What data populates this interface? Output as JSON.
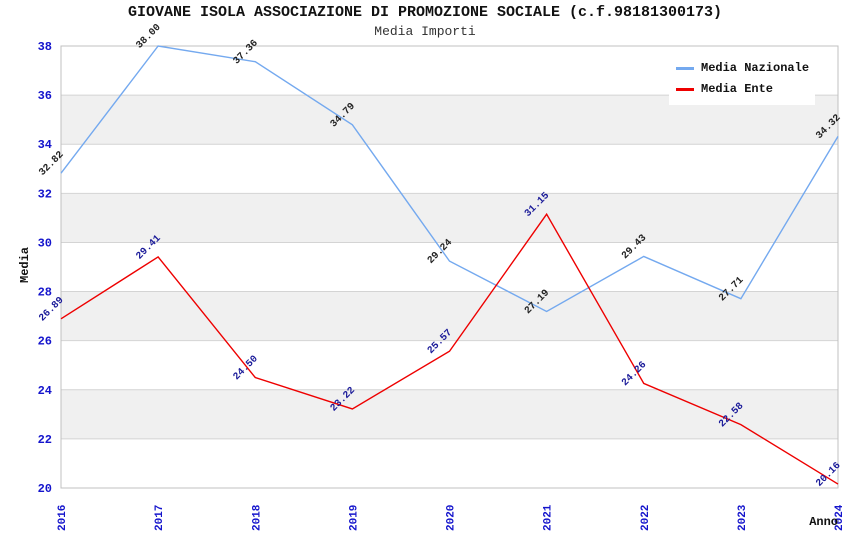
{
  "chart_data": {
    "type": "line",
    "title": "GIOVANE ISOLA ASSOCIAZIONE DI PROMOZIONE SOCIALE (c.f.98181300173)",
    "subtitle": "Media Importi",
    "xlabel": "Anno",
    "ylabel": "Media",
    "x": [
      2016,
      2017,
      2018,
      2019,
      2020,
      2021,
      2022,
      2023,
      2024
    ],
    "series": [
      {
        "name": "Media Nazionale",
        "color": "#74a9ef",
        "label_color": "#222222",
        "values": [
          32.82,
          38.0,
          37.36,
          34.79,
          29.24,
          27.19,
          29.43,
          27.71,
          34.32
        ]
      },
      {
        "name": "Media Ente",
        "color": "#ee0000",
        "label_color": "#1a1a99",
        "values": [
          26.89,
          29.41,
          24.5,
          23.22,
          25.57,
          31.15,
          24.26,
          22.58,
          20.16
        ]
      }
    ],
    "ylim": [
      20,
      38
    ],
    "ytick_step": 2,
    "grid": "horizontal",
    "legend_position": "top-right",
    "band_colors": [
      "#ffffff",
      "#f0f0f0"
    ],
    "gridline_color": "#d4d4d4",
    "plot_border_color": "#c0c0c0",
    "axis_tick_color": "#1414cc"
  }
}
